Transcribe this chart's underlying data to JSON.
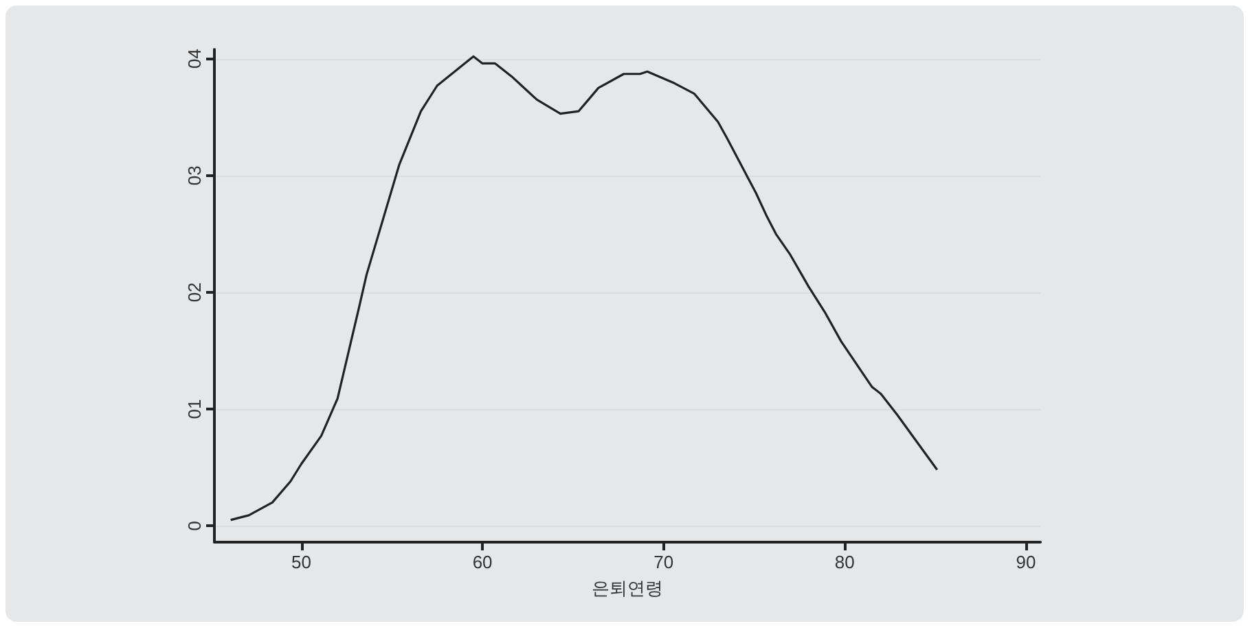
{
  "chart_data": {
    "type": "line",
    "xlabel": "은퇴연령",
    "series": [
      {
        "color": "#222222",
        "x": [
          46.1,
          47.1,
          48.4,
          49.4,
          50.0,
          51.1,
          52.0,
          53.2,
          53.6,
          55.4,
          56.6,
          57.5,
          59.5,
          60.0,
          60.7,
          61.6,
          63.0,
          64.3,
          65.3,
          65.8,
          66.4,
          67.8,
          68.7,
          69.1,
          70.6,
          71.7,
          73.0,
          73.5,
          75.1,
          75.7,
          76.2,
          77.0,
          78.0,
          78.9,
          79.8,
          81.5,
          82.0,
          82.9,
          85.1
        ],
        "values": [
          0.05,
          0.09,
          0.2,
          0.38,
          0.53,
          0.77,
          1.09,
          1.88,
          2.15,
          3.09,
          3.55,
          3.77,
          4.02,
          3.96,
          3.96,
          3.85,
          3.65,
          3.53,
          3.55,
          3.64,
          3.75,
          3.87,
          3.87,
          3.89,
          3.79,
          3.7,
          3.46,
          3.32,
          2.85,
          2.65,
          2.5,
          2.32,
          2.05,
          1.83,
          1.58,
          1.19,
          1.13,
          0.95,
          0.48
        ]
      }
    ],
    "xlim": [
      45.2,
      90.8
    ],
    "xticks": [
      50,
      60,
      70,
      80,
      90
    ],
    "ylim": [
      -0.14,
      4.08
    ],
    "yticks": [
      {
        "value": 0,
        "label": "0"
      },
      {
        "value": 1,
        "label": "01"
      },
      {
        "value": 2,
        "label": "02"
      },
      {
        "value": 3,
        "label": "03"
      },
      {
        "value": 4,
        "label": "04"
      }
    ],
    "grid": "y",
    "marker": "none",
    "line_style": "solid"
  }
}
